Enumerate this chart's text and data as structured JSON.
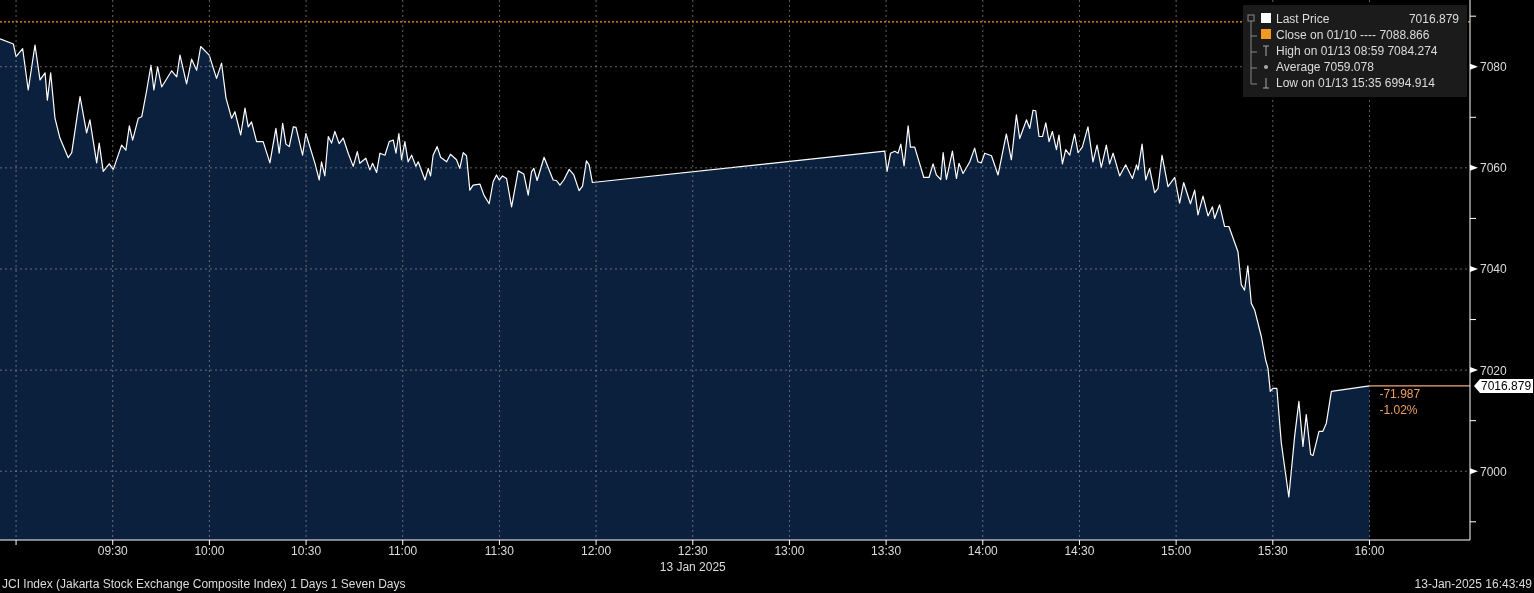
{
  "chart_data": {
    "type": "area",
    "xlabel": "13 Jan 2025",
    "x": [
      8.917,
      8.986,
      9.0,
      9.034,
      9.063,
      9.098,
      9.124,
      9.15,
      9.162,
      9.179,
      9.201,
      9.227,
      9.27,
      9.288,
      9.331,
      9.365,
      9.382,
      9.417,
      9.43,
      9.451,
      9.482,
      9.503,
      9.546,
      9.568,
      9.586,
      9.603,
      9.632,
      9.65,
      9.676,
      9.698,
      9.713,
      9.732,
      9.753,
      9.805,
      9.831,
      9.848,
      9.882,
      9.908,
      9.934,
      9.955,
      9.999,
      10.037,
      10.063,
      10.086,
      10.115,
      10.132,
      10.162,
      10.184,
      10.201,
      10.218,
      10.244,
      10.278,
      10.313,
      10.344,
      10.361,
      10.379,
      10.396,
      10.413,
      10.434,
      10.448,
      10.482,
      10.499,
      10.546,
      10.568,
      10.58,
      10.597,
      10.615,
      10.632,
      10.649,
      10.671,
      10.692,
      10.718,
      10.744,
      10.765,
      10.778,
      10.809,
      10.83,
      10.844,
      10.865,
      10.882,
      10.908,
      10.93,
      10.951,
      10.965,
      10.98,
      10.994,
      11.011,
      11.028,
      11.046,
      11.068,
      11.08,
      11.115,
      11.132,
      11.144,
      11.157,
      11.178,
      11.196,
      11.227,
      11.247,
      11.278,
      11.295,
      11.313,
      11.33,
      11.347,
      11.364,
      11.399,
      11.42,
      11.447,
      11.468,
      11.485,
      11.499,
      11.516,
      11.537,
      11.563,
      11.597,
      11.626,
      11.649,
      11.666,
      11.678,
      11.695,
      11.731,
      11.778,
      11.795,
      11.813,
      11.833,
      11.861,
      11.885,
      11.912,
      11.93,
      11.95,
      11.964,
      11.981,
      13.493,
      13.505,
      13.523,
      13.545,
      13.562,
      13.576,
      13.593,
      13.614,
      13.626,
      13.648,
      13.695,
      13.722,
      13.743,
      13.76,
      13.783,
      13.795,
      13.812,
      13.843,
      13.864,
      13.877,
      13.898,
      13.933,
      13.958,
      13.975,
      13.993,
      14.01,
      14.045,
      14.079,
      14.122,
      14.148,
      14.174,
      14.191,
      14.226,
      14.243,
      14.26,
      14.274,
      14.291,
      14.309,
      14.326,
      14.343,
      14.36,
      14.381,
      14.394,
      14.412,
      14.429,
      14.45,
      14.475,
      14.493,
      14.515,
      14.544,
      14.57,
      14.591,
      14.613,
      14.639,
      14.656,
      14.674,
      14.708,
      14.739,
      14.774,
      14.795,
      14.803,
      14.824,
      14.843,
      14.863,
      14.889,
      14.906,
      14.927,
      14.958,
      14.993,
      15.018,
      15.039,
      15.074,
      15.096,
      15.113,
      15.139,
      15.165,
      15.188,
      15.199,
      15.225,
      15.251,
      15.273,
      15.32,
      15.337,
      15.354,
      15.371,
      15.389,
      15.406,
      15.441,
      15.463,
      15.475,
      15.487,
      15.501,
      15.521,
      15.544,
      15.583,
      15.613,
      15.635,
      15.656,
      15.673,
      15.696,
      15.708,
      15.739,
      15.759,
      15.777,
      15.803,
      16.0
    ],
    "series": [
      {
        "name": "Last Price",
        "color": "#ffffff",
        "values": [
          7085.5,
          7084.5,
          7082,
          7083.6,
          7075.4,
          7084.3,
          7077.4,
          7078.8,
          7073.4,
          7078.8,
          7069.9,
          7065.9,
          7062,
          7063,
          7074.1,
          7066.9,
          7069.5,
          7061,
          7064.9,
          7059.3,
          7060.8,
          7059.7,
          7064.5,
          7063.5,
          7068.3,
          7065.5,
          7069.8,
          7070.1,
          7075.4,
          7080.3,
          7075.4,
          7080,
          7076,
          7079.2,
          7078,
          7082.3,
          7076.6,
          7081.5,
          7079.3,
          7084,
          7082.3,
          7077.7,
          7080.7,
          7073.8,
          7069.8,
          7071.1,
          7066.5,
          7071.8,
          7068.1,
          7069.1,
          7065.2,
          7065.2,
          7061,
          7067.8,
          7062.9,
          7068.8,
          7064.7,
          7064.2,
          7068.1,
          7068,
          7062.5,
          7066.8,
          7060.9,
          7057.6,
          7061.2,
          7058.4,
          7066.2,
          7064.9,
          7067.2,
          7064.8,
          7065.9,
          7062.9,
          7060.3,
          7063.2,
          7060.9,
          7061.9,
          7059.6,
          7060.9,
          7059.1,
          7062.9,
          7062.5,
          7065.2,
          7065.5,
          7062.9,
          7066.8,
          7061.6,
          7065.2,
          7061.2,
          7062.5,
          7060.3,
          7061.2,
          7057.6,
          7059.9,
          7058.4,
          7062.5,
          7064.2,
          7062.1,
          7061.2,
          7062.7,
          7061.6,
          7059.9,
          7063,
          7062.4,
          7055.6,
          7056.6,
          7056.8,
          7054.6,
          7052.9,
          7057.3,
          7058.6,
          7057.6,
          7058.4,
          7057.9,
          7052.3,
          7059.4,
          7058.8,
          7054.6,
          7059.2,
          7059.9,
          7057.5,
          7062.1,
          7057.6,
          7057.5,
          7056.6,
          7057.6,
          7059.7,
          7058.6,
          7055.5,
          7056.4,
          7061.4,
          7060.6,
          7057.1,
          7063.3,
          7059.3,
          7062.9,
          7063.3,
          7062.9,
          7064.7,
          7060.4,
          7068.3,
          7064.1,
          7064.1,
          7058.1,
          7058.1,
          7060.8,
          7058.6,
          7057.7,
          7063,
          7057.7,
          7063.3,
          7057.9,
          7060.9,
          7058.9,
          7061.2,
          7063.9,
          7061.2,
          7061,
          7062.9,
          7062.4,
          7058.6,
          7066.7,
          7061.6,
          7070.5,
          7065.8,
          7069.5,
          7067.8,
          7071.4,
          7071.3,
          7066.2,
          7066.2,
          7068.9,
          7065.2,
          7067.2,
          7063.6,
          7066.5,
          7060.8,
          7063.6,
          7062.5,
          7066.7,
          7063,
          7064.1,
          7068.1,
          7061.2,
          7064.5,
          7060.1,
          7064.5,
          7060.8,
          7062.9,
          7058.4,
          7060.6,
          7057.9,
          7060.6,
          7059.6,
          7064.7,
          7057.6,
          7059.9,
          7055.1,
          7055.9,
          7062.5,
          7056.3,
          7058.1,
          7053,
          7057.1,
          7052.9,
          7055.6,
          7050.7,
          7054.4,
          7050.5,
          7052.3,
          7050,
          7052.7,
          7048.4,
          7048.4,
          7043.4,
          7036.9,
          7035.8,
          7040.6,
          7033.2,
          7031.9,
          7026.6,
          7022,
          7020.4,
          7015.8,
          7016.4,
          7016.4,
          7005.6,
          6994.9,
          7006.9,
          7013.8,
          7004.9,
          7011.2,
          7003.3,
          7003.1,
          7007.9,
          7007.9,
          7009.5,
          7015.8,
          7016.9
        ]
      }
    ],
    "xlim": [
      8.917,
      16.52
    ],
    "xticks": [
      {
        "value": 9,
        "label": null
      },
      {
        "value": 9.5,
        "label": "09:30"
      },
      {
        "value": 10,
        "label": "10:00"
      },
      {
        "value": 10.5,
        "label": "10:30"
      },
      {
        "value": 11,
        "label": "11:00"
      },
      {
        "value": 11.5,
        "label": "11:30"
      },
      {
        "value": 12,
        "label": "12:00"
      },
      {
        "value": 12.5,
        "label": "12:30"
      },
      {
        "value": 13,
        "label": "13:00"
      },
      {
        "value": 13.5,
        "label": "13:30"
      },
      {
        "value": 14,
        "label": "14:00"
      },
      {
        "value": 14.5,
        "label": "14:30"
      },
      {
        "value": 15,
        "label": "15:00"
      },
      {
        "value": 15.5,
        "label": "15:30"
      },
      {
        "value": 16,
        "label": "16:00"
      }
    ],
    "ylim": [
      6986.4,
      7093.2
    ],
    "yticks": [
      {
        "value": 6990,
        "label": null
      },
      7000,
      {
        "value": 7010,
        "label": null
      },
      7020,
      {
        "value": 7030,
        "label": null
      },
      7040,
      {
        "value": 7050,
        "label": null
      },
      7060,
      {
        "value": 7070,
        "label": null
      },
      7080,
      {
        "value": 7090,
        "label": null
      }
    ],
    "grid": true,
    "legend": "top right",
    "ref_lines": [
      {
        "axis": "y",
        "value": 7088.866,
        "label": "Close on 01/10 ---- 7088.866",
        "color": "#f39a1e",
        "line_style": "dotted"
      },
      {
        "axis": "y",
        "value": 7016.879,
        "label": "7016.879",
        "color": "#f0a878",
        "line_style": "solid"
      }
    ],
    "annotations": [
      "7016.879",
      "High on 01/13 08:59 7084.274",
      "Average 7059.078",
      "Low on 01/13 15:35 6994.914",
      "-71.987",
      "-1.02%",
      "JCI Index (Jakarta Stock Exchange Composite Index) 1 Days 1 Seven Days",
      "13-Jan-2025 16:43:49"
    ]
  }
}
